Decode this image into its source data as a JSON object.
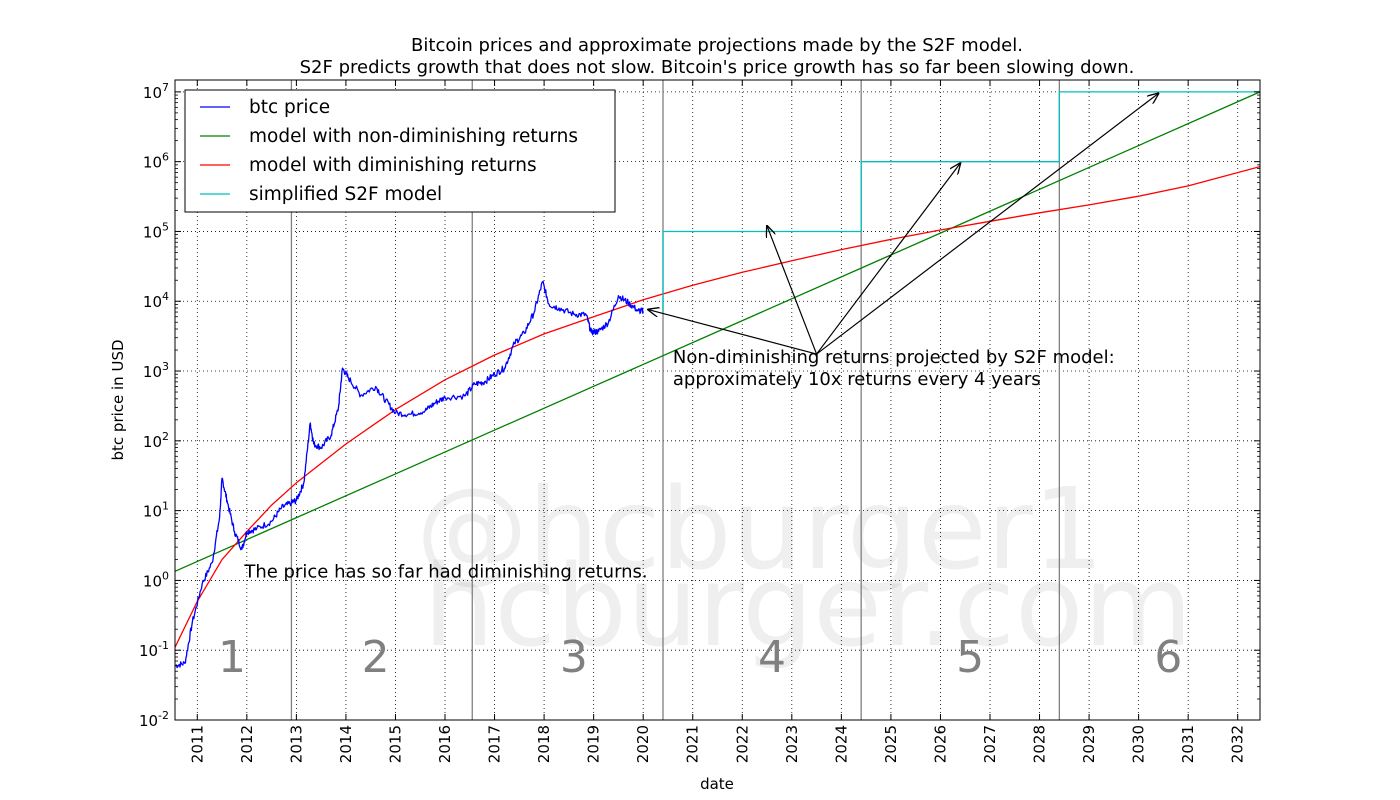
{
  "chart_data": {
    "type": "line",
    "title_line1": "Bitcoin prices and approximate projections made by the S2F model.",
    "title_line2": "S2F predicts growth that does not slow. Bitcoin's price growth has so far been slowing down.",
    "xlabel": "date",
    "ylabel": "btc price in USD",
    "y_scale": "log",
    "xlim": [
      2010.55,
      2032.45
    ],
    "ylim_exponent": [
      -2,
      7.17
    ],
    "grid": true,
    "x_ticks": [
      "2011",
      "2012",
      "2013",
      "2014",
      "2015",
      "2016",
      "2017",
      "2018",
      "2019",
      "2020",
      "2021",
      "2022",
      "2023",
      "2024",
      "2025",
      "2026",
      "2027",
      "2028",
      "2029",
      "2030",
      "2031",
      "2032"
    ],
    "y_ticks": [
      {
        "exp": -2,
        "base": "10",
        "sup": "-2"
      },
      {
        "exp": -1,
        "base": "10",
        "sup": "-1"
      },
      {
        "exp": 0,
        "base": "10",
        "sup": "0"
      },
      {
        "exp": 1,
        "base": "10",
        "sup": "1"
      },
      {
        "exp": 2,
        "base": "10",
        "sup": "2"
      },
      {
        "exp": 3,
        "base": "10",
        "sup": "3"
      },
      {
        "exp": 4,
        "base": "10",
        "sup": "4"
      },
      {
        "exp": 5,
        "base": "10",
        "sup": "5"
      },
      {
        "exp": 6,
        "base": "10",
        "sup": "6"
      },
      {
        "exp": 7,
        "base": "10",
        "sup": "7"
      }
    ],
    "legend_position": "top-left",
    "series": [
      {
        "name": "btc price",
        "color": "#0000ff",
        "style": "noisy-line",
        "points": [
          [
            2010.55,
            0.06
          ],
          [
            2010.75,
            0.065
          ],
          [
            2010.9,
            0.25
          ],
          [
            2011.1,
            0.9
          ],
          [
            2011.3,
            1.8
          ],
          [
            2011.45,
            8
          ],
          [
            2011.5,
            29
          ],
          [
            2011.6,
            14
          ],
          [
            2011.75,
            5
          ],
          [
            2011.9,
            2.8
          ],
          [
            2012.0,
            5
          ],
          [
            2012.2,
            5.5
          ],
          [
            2012.5,
            7
          ],
          [
            2012.7,
            11
          ],
          [
            2012.9,
            13
          ],
          [
            2013.0,
            14
          ],
          [
            2013.15,
            25
          ],
          [
            2013.28,
            180
          ],
          [
            2013.35,
            90
          ],
          [
            2013.5,
            80
          ],
          [
            2013.7,
            120
          ],
          [
            2013.85,
            300
          ],
          [
            2013.93,
            1100
          ],
          [
            2014.05,
            800
          ],
          [
            2014.3,
            450
          ],
          [
            2014.6,
            600
          ],
          [
            2014.8,
            380
          ],
          [
            2015.0,
            250
          ],
          [
            2015.3,
            240
          ],
          [
            2015.6,
            270
          ],
          [
            2015.8,
            350
          ],
          [
            2016.0,
            420
          ],
          [
            2016.4,
            440
          ],
          [
            2016.6,
            650
          ],
          [
            2016.8,
            700
          ],
          [
            2017.0,
            900
          ],
          [
            2017.2,
            1100
          ],
          [
            2017.4,
            2500
          ],
          [
            2017.6,
            3500
          ],
          [
            2017.8,
            7000
          ],
          [
            2017.97,
            19000
          ],
          [
            2018.1,
            9000
          ],
          [
            2018.3,
            8000
          ],
          [
            2018.6,
            6500
          ],
          [
            2018.85,
            6400
          ],
          [
            2018.95,
            3600
          ],
          [
            2019.1,
            3700
          ],
          [
            2019.3,
            5000
          ],
          [
            2019.5,
            12000
          ],
          [
            2019.7,
            9500
          ],
          [
            2019.9,
            7300
          ],
          [
            2020.0,
            7200
          ]
        ]
      },
      {
        "name": "model with non-diminishing returns",
        "color": "#008000",
        "style": "line",
        "points": [
          [
            2010.55,
            1.35
          ],
          [
            2032.45,
            10000000
          ]
        ]
      },
      {
        "name": "model with diminishing returns",
        "color": "#ff0000",
        "style": "curve",
        "points": [
          [
            2010.55,
            0.11
          ],
          [
            2011.0,
            0.5
          ],
          [
            2011.5,
            2
          ],
          [
            2012.0,
            5
          ],
          [
            2012.5,
            12
          ],
          [
            2013.0,
            25
          ],
          [
            2014.0,
            90
          ],
          [
            2015.0,
            280
          ],
          [
            2016.0,
            750
          ],
          [
            2017.0,
            1700
          ],
          [
            2018.0,
            3400
          ],
          [
            2019.0,
            6000
          ],
          [
            2020.0,
            10500
          ],
          [
            2021.0,
            17000
          ],
          [
            2022.0,
            26000
          ],
          [
            2023.0,
            38000
          ],
          [
            2024.0,
            55000
          ],
          [
            2025.0,
            77000
          ],
          [
            2026.0,
            105000
          ],
          [
            2027.0,
            140000
          ],
          [
            2028.0,
            185000
          ],
          [
            2029.0,
            240000
          ],
          [
            2030.0,
            320000
          ],
          [
            2031.0,
            450000
          ],
          [
            2032.45,
            850000
          ]
        ]
      },
      {
        "name": "simplified S2F model",
        "color": "#00bfbf",
        "style": "step",
        "points": [
          [
            2020.4,
            7000
          ],
          [
            2020.4,
            100000
          ],
          [
            2024.4,
            100000
          ],
          [
            2024.4,
            1000000
          ],
          [
            2028.4,
            1000000
          ],
          [
            2028.4,
            10000000
          ],
          [
            2032.45,
            10000000
          ]
        ]
      }
    ],
    "vertical_lines": [
      2012.9,
      2016.55,
      2020.4,
      2024.4,
      2028.4
    ],
    "era_labels": [
      {
        "label": "1",
        "x": 2011.7
      },
      {
        "label": "2",
        "x": 2014.6
      },
      {
        "label": "3",
        "x": 2018.6
      },
      {
        "label": "4",
        "x": 2022.6
      },
      {
        "label": "5",
        "x": 2026.6
      },
      {
        "label": "6",
        "x": 2030.6
      }
    ],
    "annotations": [
      {
        "text": "Non-diminishing returns projected by S2F model:",
        "x": 2020.6,
        "y": 1300
      },
      {
        "text": " approximately 10x returns every 4 years",
        "x": 2020.6,
        "y": 630
      },
      {
        "text": "The price has so far had diminishing returns.",
        "x": 2011.95,
        "y": 1.1
      }
    ],
    "arrows": [
      {
        "from": [
          2023.5,
          1750
        ],
        "to": [
          2020.1,
          7600
        ]
      },
      {
        "from": [
          2023.5,
          1750
        ],
        "to": [
          2022.5,
          120000
        ]
      },
      {
        "from": [
          2023.5,
          1750
        ],
        "to": [
          2026.4,
          950000
        ]
      },
      {
        "from": [
          2023.5,
          1750
        ],
        "to": [
          2030.4,
          9500000
        ]
      }
    ],
    "watermark": [
      "@hcburger1",
      "hcburger.com"
    ]
  }
}
